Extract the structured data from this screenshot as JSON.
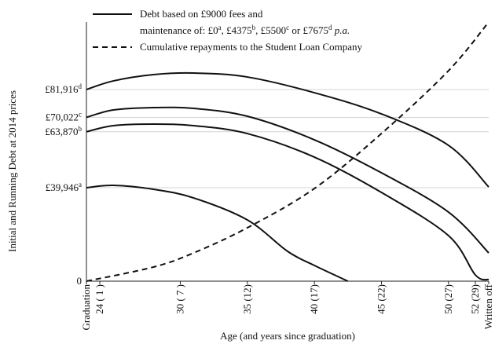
{
  "chart_data": {
    "type": "line",
    "y_label": "Initial and Running Debt at 2014 prices",
    "x_label": "Age (and years since graduation)",
    "xlim": [
      0,
      30
    ],
    "ylim": [
      0,
      110800
    ],
    "grid": true,
    "xticks": [
      {
        "value": 0,
        "label": "Graduation"
      },
      {
        "value": 1,
        "label": "24 ( 1 )"
      },
      {
        "value": 7,
        "label": "30 ( 7 )"
      },
      {
        "value": 12,
        "label": "35 (12)"
      },
      {
        "value": 17,
        "label": "40 (17)"
      },
      {
        "value": 22,
        "label": "45 (22)"
      },
      {
        "value": 27,
        "label": "50 (27)"
      },
      {
        "value": 29,
        "label": "52 (29)"
      },
      {
        "value": 30,
        "label": "Written off"
      }
    ],
    "yticks": [
      0,
      {
        "value": 39946,
        "label": "£39,946",
        "sup": "a"
      },
      {
        "value": 63870,
        "label": "£63,870",
        "sup": "b"
      },
      {
        "value": 70022,
        "label": "£70,022",
        "sup": "c"
      },
      {
        "value": 81916,
        "label": "£81,916",
        "sup": "d"
      }
    ],
    "legend": [
      {
        "style": "solid",
        "lines": [
          [
            {
              "t": "Debt based on £9000 fees and"
            }
          ],
          [
            {
              "t": "maintenance of: £0"
            },
            {
              "t": "a",
              "sup": true
            },
            {
              "t": ", £4375"
            },
            {
              "t": "b",
              "sup": true
            },
            {
              "t": ", £5500"
            },
            {
              "t": "c",
              "sup": true
            },
            {
              "t": " or £7675"
            },
            {
              "t": "d",
              "sup": true
            },
            {
              "t": " p.a.",
              "italic": true
            }
          ]
        ]
      },
      {
        "style": "dashed",
        "lines": [
          [
            {
              "t": "Cumulative repayments to the Student Loan Company"
            }
          ]
        ]
      }
    ],
    "series": [
      {
        "style": "solid",
        "color": "#111111",
        "x": [
          0,
          2,
          5,
          8,
          12,
          17,
          22,
          27,
          30
        ],
        "values": [
          81916,
          85600,
          88290,
          88960,
          87280,
          80570,
          71500,
          58080,
          40280
        ]
      },
      {
        "style": "solid",
        "color": "#111111",
        "x": [
          0,
          2,
          5,
          8,
          12,
          17,
          22,
          27,
          30
        ],
        "values": [
          70022,
          73180,
          74190,
          73850,
          70500,
          60430,
          46330,
          29540,
          12090
        ]
      },
      {
        "style": "solid",
        "color": "#111111",
        "x": [
          0,
          2,
          5,
          8,
          12,
          17,
          22,
          27,
          29,
          30
        ],
        "values": [
          63870,
          66470,
          67140,
          66470,
          63110,
          53040,
          37930,
          19470,
          2690,
          670
        ]
      },
      {
        "style": "solid",
        "color": "#111111",
        "x": [
          0,
          2,
          5,
          8,
          12,
          15,
          17,
          19.5
        ],
        "values": [
          39946,
          40960,
          39280,
          35580,
          26190,
          12760,
          6710,
          0
        ]
      },
      {
        "style": "dashed",
        "color": "#111111",
        "x": [
          0,
          5,
          8,
          12,
          17,
          22,
          27,
          30
        ],
        "values": [
          0,
          6040,
          12090,
          22830,
          39610,
          63110,
          89970,
          110780
        ]
      }
    ]
  }
}
